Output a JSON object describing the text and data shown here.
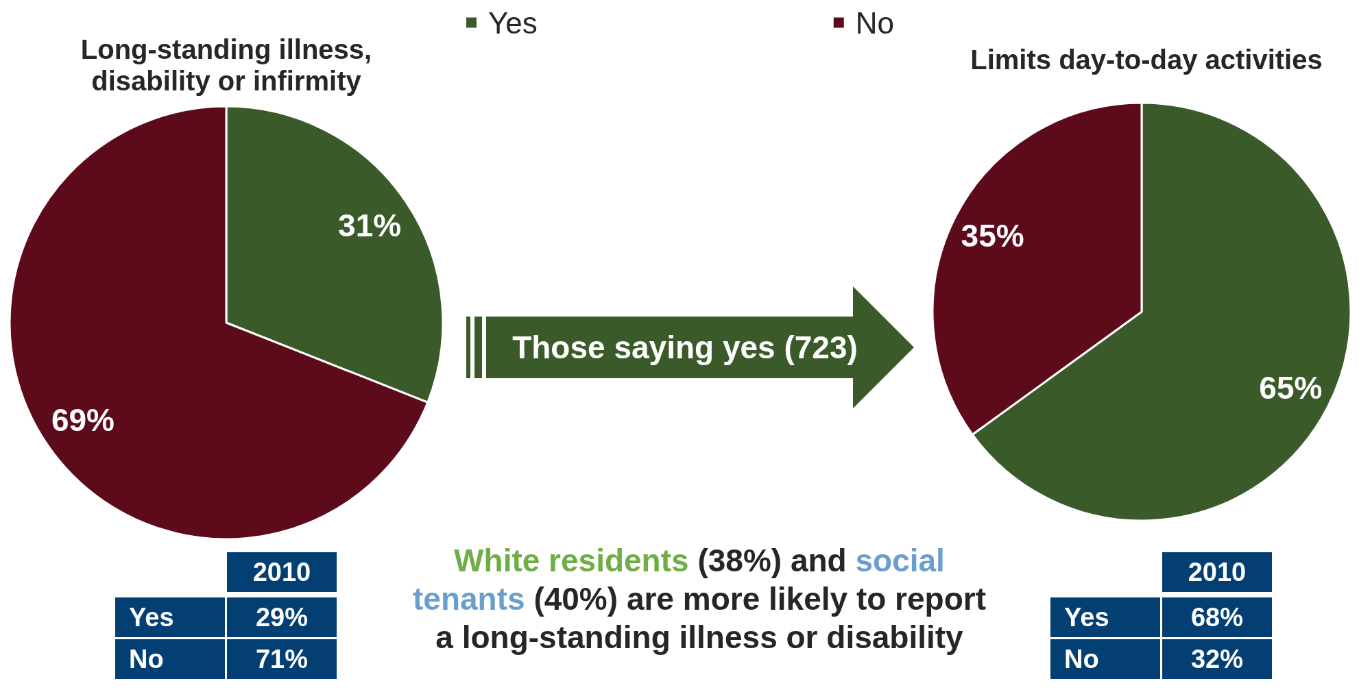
{
  "chart_data": [
    {
      "type": "pie",
      "categories": [
        "Yes",
        "No"
      ],
      "colors": [
        "#3b5a29",
        "#5d0a1b"
      ],
      "legend": "top",
      "series": [
        {
          "name": "Long-standing illness, disability or infirmity",
          "values": [
            31,
            69
          ],
          "value_labels": [
            "31%",
            "69%"
          ]
        },
        {
          "name": "Limits day-to-day activities",
          "values": [
            65,
            35
          ],
          "value_labels": [
            "65%",
            "35%"
          ]
        }
      ],
      "annotations": [
        "Those saying yes (723)",
        "White residents (38%) and social tenants (40%) are more likely to report a long-standing illness or disability"
      ]
    },
    {
      "type": "other",
      "title": "2010",
      "categories": [
        "Yes",
        "No"
      ],
      "value_labels": [
        "29%",
        "71%"
      ],
      "color": "#033f73"
    },
    {
      "type": "other",
      "title": "2010",
      "categories": [
        "Yes",
        "No"
      ],
      "value_labels": [
        "68%",
        "32%"
      ],
      "color": "#033f73"
    }
  ]
}
